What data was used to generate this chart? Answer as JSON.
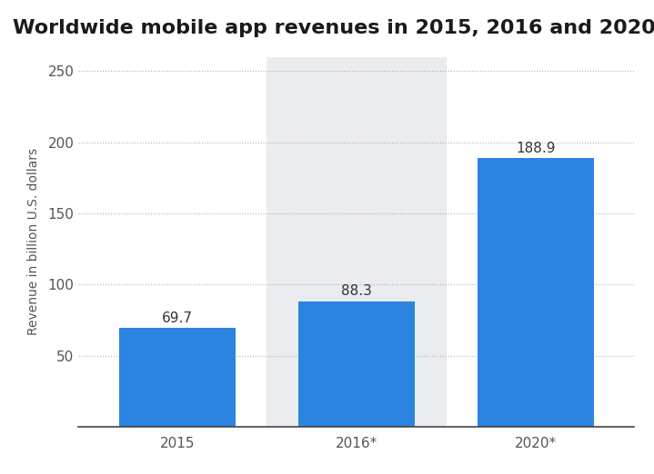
{
  "title": "Worldwide mobile app revenues in 2015, 2016 and 2020",
  "categories": [
    "2015",
    "2016*",
    "2020*"
  ],
  "values": [
    69.7,
    88.3,
    188.9
  ],
  "bar_color": "#2b84e0",
  "highlight_bar_index": 1,
  "highlight_color": "#eaecf0",
  "ylabel": "Revenue in billion U.S. dollars",
  "ylim": [
    0,
    260
  ],
  "yticks": [
    0,
    50,
    100,
    150,
    200,
    250
  ],
  "background_color": "#ffffff",
  "title_fontsize": 16,
  "label_fontsize": 10,
  "tick_fontsize": 11,
  "bar_label_fontsize": 11,
  "grid_color": "#b0b0b0",
  "bar_width": 0.65
}
